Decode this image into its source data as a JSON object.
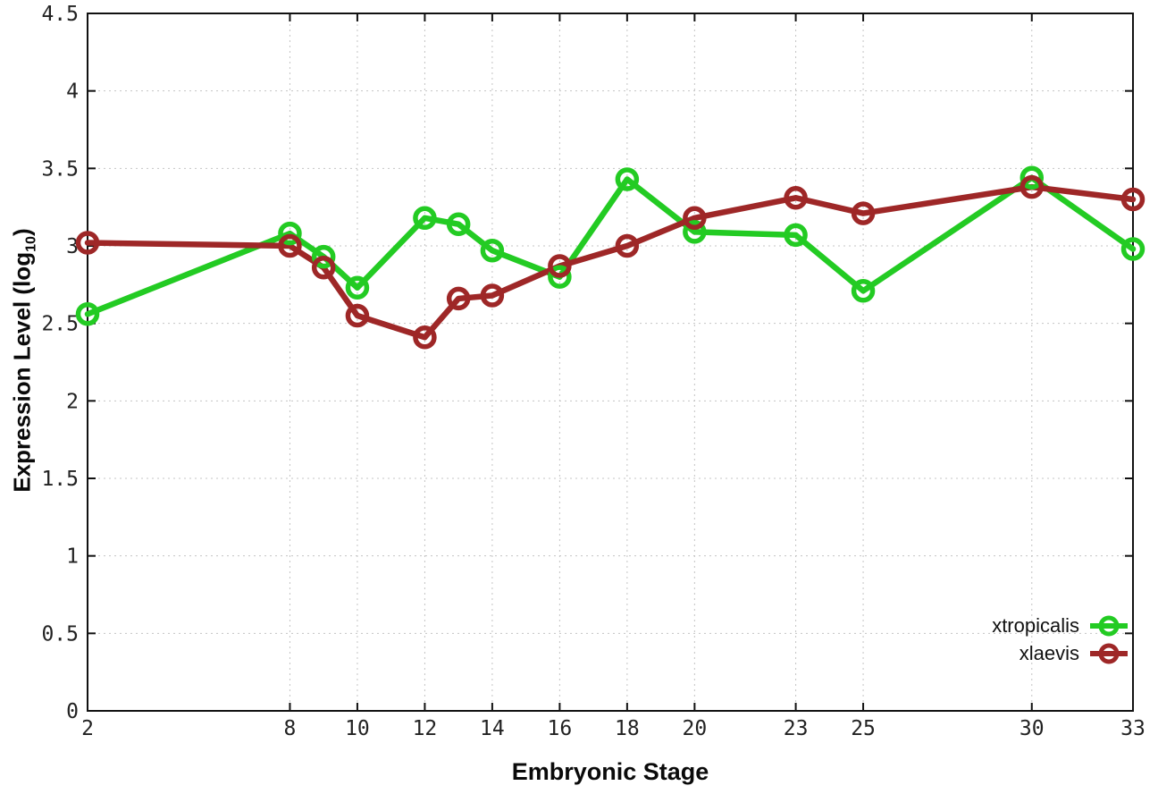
{
  "chart_data": {
    "type": "line",
    "title": "",
    "xlabel": "Embryonic Stage",
    "ylabel": {
      "prefix": "Expression Level (log",
      "sub": "10",
      "suffix": ")"
    },
    "x": [
      2,
      8,
      9,
      10,
      12,
      13,
      14,
      16,
      18,
      20,
      23,
      25,
      30,
      33
    ],
    "x_ticks": [
      2,
      8,
      10,
      12,
      14,
      16,
      18,
      20,
      23,
      25,
      30,
      33
    ],
    "y_ticks": [
      0,
      0.5,
      1,
      1.5,
      2,
      2.5,
      3,
      3.5,
      4,
      4.5
    ],
    "xlim": [
      2,
      33
    ],
    "ylim": [
      0,
      4.5
    ],
    "grid": true,
    "legend_position": "bottom-right",
    "series": [
      {
        "name": "xtropicalis",
        "color": "#23cb23",
        "values": [
          2.56,
          3.08,
          2.93,
          2.73,
          3.18,
          3.14,
          2.97,
          2.8,
          3.43,
          3.09,
          3.07,
          2.71,
          3.44,
          2.98
        ]
      },
      {
        "name": "xlaevis",
        "color": "#9e2727",
        "values": [
          3.02,
          3.0,
          2.86,
          2.55,
          2.41,
          2.66,
          2.68,
          2.87,
          3.0,
          3.18,
          3.31,
          3.21,
          3.38,
          3.3
        ]
      }
    ],
    "style": {
      "grid_color": "#c4c4c4",
      "border_color": "#111111",
      "tick_label_color": "#222222"
    }
  }
}
